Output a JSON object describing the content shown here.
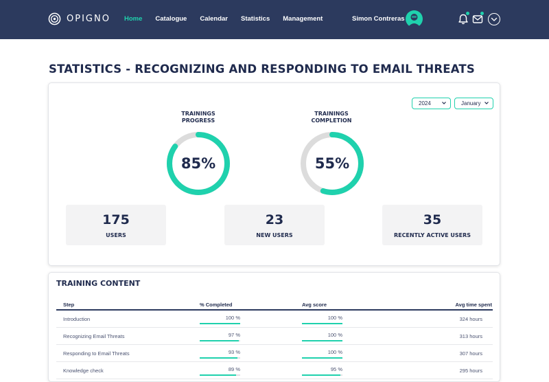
{
  "header": {
    "logo_text": "OPIGNO",
    "nav": [
      {
        "label": "Home",
        "active": true
      },
      {
        "label": "Catalogue",
        "active": false
      },
      {
        "label": "Calendar",
        "active": false
      },
      {
        "label": "Statistics",
        "active": false
      },
      {
        "label": "Management",
        "active": false
      }
    ],
    "user_name": "Simon Contreras",
    "icons": [
      "bell-icon",
      "mail-icon",
      "chevron-down-icon"
    ],
    "accent_color": "#1fd1ad",
    "bar_color": "#2c3a5e"
  },
  "page": {
    "title": "STATISTICS - RECOGNIZING AND RESPONDING TO EMAIL THREATS"
  },
  "stats": {
    "year_select": "2024",
    "month_select": "January",
    "gauges": [
      {
        "title_line1": "TRAININGS",
        "title_line2": "PROGRESS",
        "value_label": "85%",
        "value": 0.85
      },
      {
        "title_line1": "TRAININGS",
        "title_line2": "COMPLETION",
        "value_label": "55%",
        "value": 0.55
      }
    ],
    "boxes": [
      {
        "value": "175",
        "label": "USERS"
      },
      {
        "value": "23",
        "label": "NEW USERS"
      },
      {
        "value": "35",
        "label": "RECENTLY ACTIVE USERS"
      }
    ]
  },
  "training_content": {
    "title": "TRAINING CONTENT",
    "columns": [
      "Step",
      "% Completed",
      "Avg score",
      "Avg time spent"
    ],
    "rows": [
      {
        "step": "Introduction",
        "completed": "100 %",
        "completed_value": 1.0,
        "score": "100 %",
        "score_value": 1.0,
        "time": "324 hours"
      },
      {
        "step": "Recognizing Email Threats",
        "completed": "97 %",
        "completed_value": 0.97,
        "score": "100 %",
        "score_value": 1.0,
        "time": "313 hours"
      },
      {
        "step": "Responding to Email Threats",
        "completed": "93 %",
        "completed_value": 0.93,
        "score": "100 %",
        "score_value": 1.0,
        "time": "307 hours"
      },
      {
        "step": "Knowledge check",
        "completed": "89 %",
        "completed_value": 0.89,
        "score": "95 %",
        "score_value": 0.95,
        "time": "295 hours"
      }
    ]
  }
}
